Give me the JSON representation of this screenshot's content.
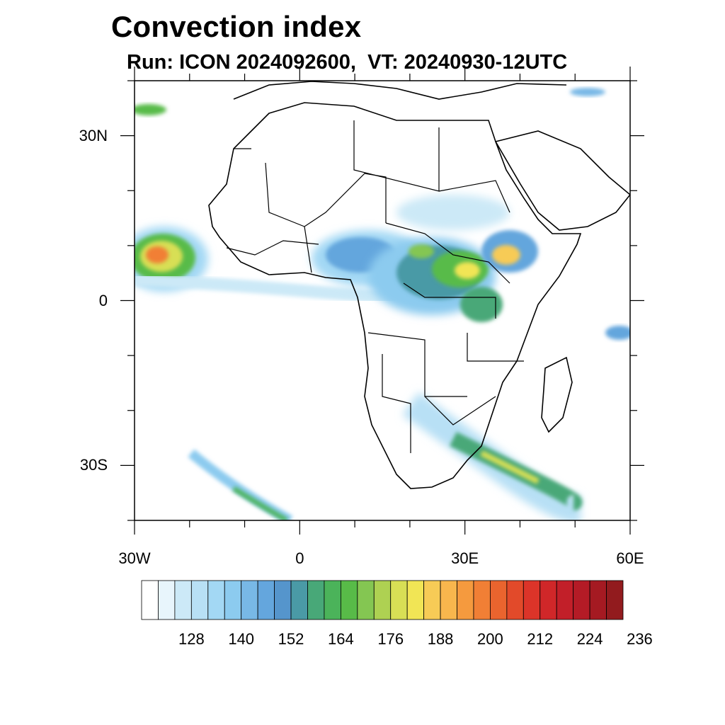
{
  "title": "Convection index",
  "subtitle": "Run: ICON 2024092600,  VT: 20240930-12UTC",
  "map": {
    "lon_range": [
      -30,
      60
    ],
    "lat_range": [
      -40,
      40
    ],
    "lat_ticks": [
      {
        "lat": 30,
        "label": "30N"
      },
      {
        "lat": 0,
        "label": "0"
      },
      {
        "lat": -30,
        "label": "30S"
      }
    ],
    "lon_ticks": [
      {
        "lon": -30,
        "label": "30W"
      },
      {
        "lon": 0,
        "label": "0"
      },
      {
        "lon": 30,
        "label": "30E"
      },
      {
        "lon": 60,
        "label": "60E"
      }
    ]
  },
  "legend": {
    "labels": [
      "128",
      "140",
      "152",
      "164",
      "176",
      "188",
      "200",
      "212",
      "224",
      "236"
    ],
    "colors": [
      "#ffffff",
      "#e8f5fc",
      "#cce9f7",
      "#b8e0f5",
      "#a3d8f4",
      "#8ccbef",
      "#78b8e6",
      "#64a6dd",
      "#5595cc",
      "#4a9aa6",
      "#48a878",
      "#4bb35a",
      "#58bb48",
      "#84c652",
      "#aed152",
      "#d8df55",
      "#f1e555",
      "#f7cb56",
      "#f8b64d",
      "#f59a3e",
      "#f17f35",
      "#ea642e",
      "#e24a2a",
      "#dc3429",
      "#d02729",
      "#c21f29",
      "#b41b26",
      "#a51a22",
      "#921b1e"
    ]
  }
}
